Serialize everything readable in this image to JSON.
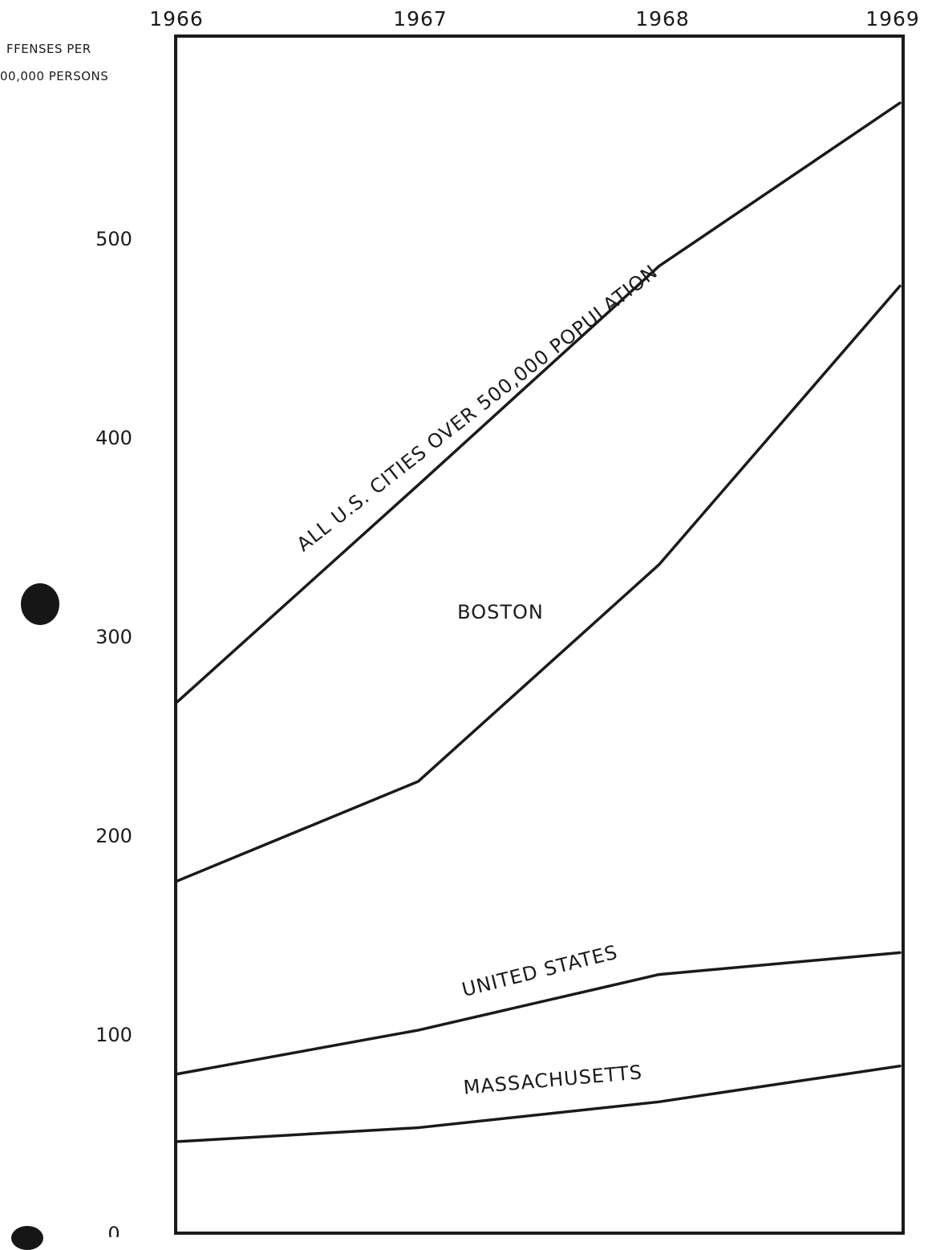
{
  "chart_data": {
    "type": "line",
    "title": "",
    "ylabel_lines": [
      "FFENSES PER",
      "00,000 PERSONS"
    ],
    "xlabel": "",
    "x": [
      "1966",
      "1967",
      "1968",
      "1969"
    ],
    "x_tick_labels": [
      "1966",
      "1967",
      "1968",
      "1969"
    ],
    "y_ticks": [
      0,
      100,
      200,
      300,
      400,
      500
    ],
    "ylim": [
      0,
      590
    ],
    "grid": false,
    "legend": "none",
    "series": [
      {
        "name": "ALL U.S. CITIES OVER 500,000 POPULATION",
        "values": [
          267,
          376,
          486,
          568
        ]
      },
      {
        "name": "BOSTON",
        "values": [
          177,
          227,
          336,
          476
        ]
      },
      {
        "name": "UNITED STATES",
        "values": [
          80,
          102,
          130,
          141
        ]
      },
      {
        "name": "MASSACHUSETTS",
        "values": [
          46,
          53,
          66,
          84
        ]
      }
    ]
  },
  "colors": {
    "ink": "#1a1a1a",
    "background": "#ffffff"
  }
}
